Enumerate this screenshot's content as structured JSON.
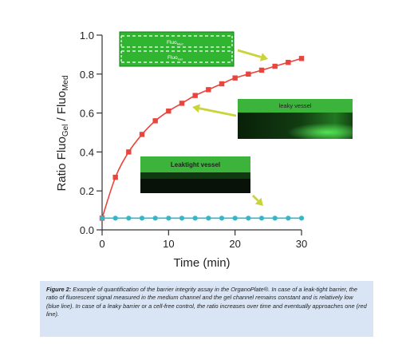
{
  "chart_data": {
    "type": "line",
    "xlabel": "Time (min)",
    "ylabel_main": "Ratio Fluo",
    "ylabel_sub1": "Gel",
    "ylabel_sep": " / Fluo",
    "ylabel_sub2": "Med",
    "xlim": [
      0,
      30
    ],
    "ylim": [
      0,
      1
    ],
    "x_ticks": [
      "0",
      "10",
      "20",
      "30"
    ],
    "y_ticks": [
      "0.0",
      "0.2",
      "0.4",
      "0.6",
      "0.8",
      "1.0"
    ],
    "series": [
      {
        "color": "#e8453c",
        "marker": "square",
        "x": [
          0,
          2,
          4,
          6,
          8,
          10,
          12,
          14,
          16,
          18,
          20,
          22,
          24,
          26,
          28,
          30
        ],
        "y": [
          0.06,
          0.27,
          0.4,
          0.49,
          0.56,
          0.61,
          0.65,
          0.69,
          0.72,
          0.75,
          0.78,
          0.8,
          0.82,
          0.84,
          0.86,
          0.88
        ]
      },
      {
        "color": "#33b8c9",
        "marker": "circle",
        "x": [
          0,
          2,
          4,
          6,
          8,
          10,
          12,
          14,
          16,
          18,
          20,
          22,
          24,
          26,
          28,
          30
        ],
        "y": [
          0.06,
          0.06,
          0.06,
          0.06,
          0.06,
          0.06,
          0.06,
          0.06,
          0.06,
          0.06,
          0.06,
          0.06,
          0.06,
          0.06,
          0.06,
          0.06
        ]
      }
    ],
    "insets": {
      "top": {
        "label1": "Fluo",
        "label1_sub": "Med",
        "label2": "Fluo",
        "label2_sub": "Gel"
      },
      "leaky": {
        "label": "leaky vessel"
      },
      "tight": {
        "label": "Leaktight vessel"
      }
    },
    "arrow_color": "#c8d43a"
  },
  "caption": {
    "bold": "Figure 2:",
    "text": " Example of quantification of the barrier integrity assay in the OrganoPlate®. In case of a leak-tight barrier, the ratio of fluorescent signal measured in the medium channel and the gel channel remains constant and is relatively low (blue line). In case of a leaky barrier or a cell-free control, the ratio increases over time and eventually approaches one (red line)."
  }
}
